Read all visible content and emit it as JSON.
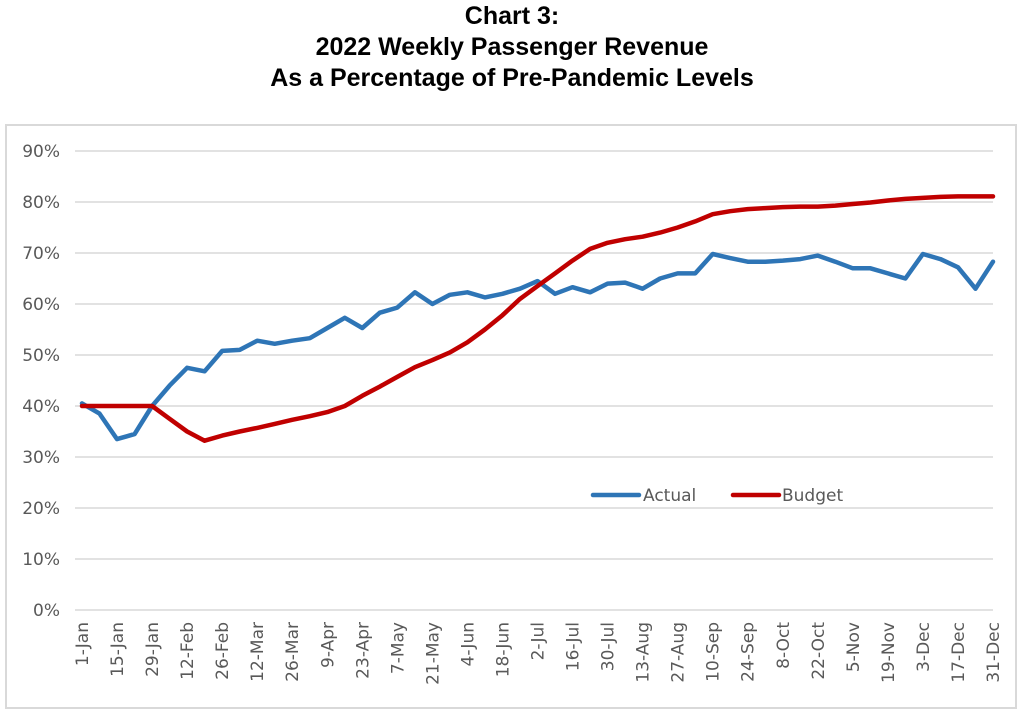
{
  "chart_data": {
    "type": "line",
    "title": "Chart 3:",
    "subtitle_lines": [
      "2022 Weekly Passenger Revenue",
      "As a Percentage of Pre-Pandemic Levels"
    ],
    "xlabel": "",
    "ylabel": "",
    "ylim": [
      0,
      90
    ],
    "yticks": [
      0,
      10,
      20,
      30,
      40,
      50,
      60,
      70,
      80,
      90
    ],
    "ytick_labels": [
      "0%",
      "10%",
      "20%",
      "30%",
      "40%",
      "50%",
      "60%",
      "70%",
      "80%",
      "90%"
    ],
    "grid": true,
    "legend_position": "bottom-center-right (inside plot, near 25%)",
    "x_tick_labels": [
      "1-Jan",
      "15-Jan",
      "29-Jan",
      "12-Feb",
      "26-Feb",
      "12-Mar",
      "26-Mar",
      "9-Apr",
      "23-Apr",
      "7-May",
      "21-May",
      "4-Jun",
      "18-Jun",
      "2-Jul",
      "16-Jul",
      "30-Jul",
      "13-Aug",
      "27-Aug",
      "10-Sep",
      "24-Sep",
      "8-Oct",
      "22-Oct",
      "5-Nov",
      "19-Nov",
      "3-Dec",
      "17-Dec",
      "31-Dec"
    ],
    "x_week_count": 53,
    "series": [
      {
        "name": "Actual",
        "color": "#2e75b6",
        "values": [
          40.5,
          38.5,
          33.5,
          34.5,
          40,
          44,
          47.5,
          46.8,
          50.8,
          51,
          52.8,
          52.2,
          52.8,
          53.3,
          55.3,
          57.3,
          55.3,
          58.3,
          59.3,
          62.3,
          60,
          61.8,
          62.3,
          61.3,
          62,
          63,
          64.5,
          62,
          63.3,
          62.3,
          64,
          64.2,
          63,
          65,
          66,
          66,
          69.8,
          69,
          68.3,
          68.3,
          68.5,
          68.8,
          69.5,
          68.3,
          67,
          67,
          66,
          65,
          69.8,
          68.8,
          67.2,
          63,
          68.3
        ]
      },
      {
        "name": "Budget",
        "color": "#c00000",
        "values": [
          40,
          40,
          40,
          40,
          40,
          37.5,
          35,
          33.2,
          34.2,
          35,
          35.7,
          36.5,
          37.3,
          38,
          38.8,
          40,
          42,
          43.8,
          45.7,
          47.6,
          49,
          50.5,
          52.5,
          55,
          57.8,
          61,
          63.5,
          66,
          68.5,
          70.8,
          72,
          72.7,
          73.2,
          74,
          75,
          76.2,
          77.6,
          78.2,
          78.6,
          78.8,
          79,
          79.1,
          79.1,
          79.3,
          79.6,
          79.9,
          80.3,
          80.6,
          80.8,
          81,
          81.1,
          81.1,
          81.1
        ]
      }
    ]
  }
}
